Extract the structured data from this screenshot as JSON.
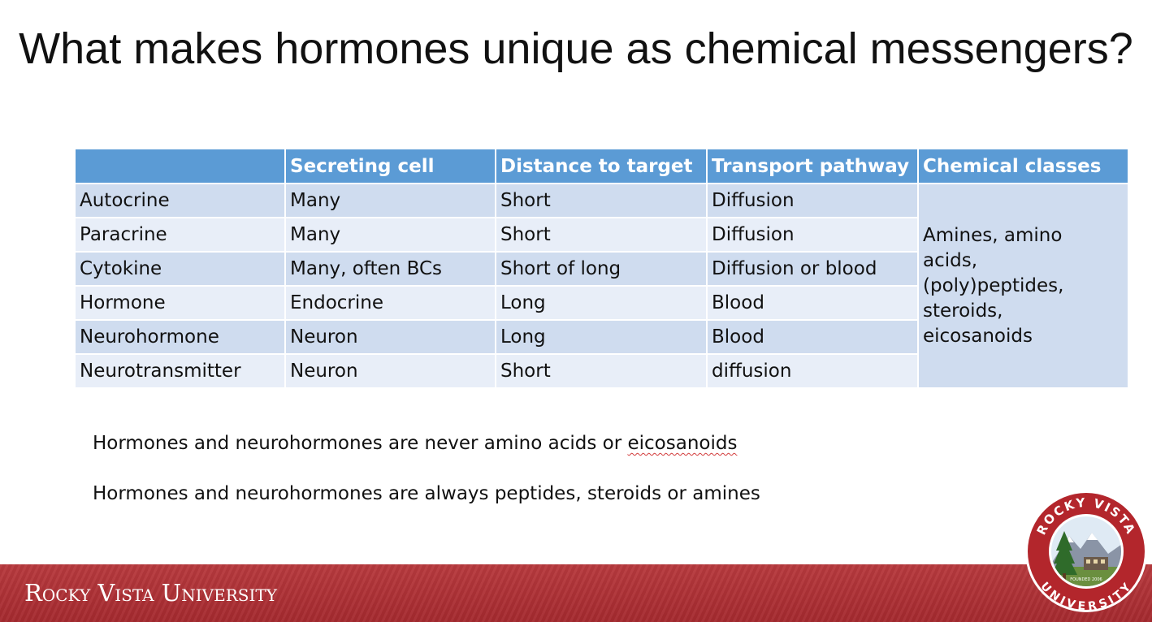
{
  "slide": {
    "title": "What makes hormones unique as chemical messengers?"
  },
  "table": {
    "headers": [
      "",
      "Secreting cell",
      "Distance to target",
      "Transport pathway",
      "Chemical classes"
    ],
    "rows": [
      {
        "type": "Autocrine",
        "secreting_cell": "Many",
        "distance": "Short",
        "pathway": "Diffusion"
      },
      {
        "type": "Paracrine",
        "secreting_cell": "Many",
        "distance": "Short",
        "pathway": "Diffusion"
      },
      {
        "type": "Cytokine",
        "secreting_cell": "Many, often BCs",
        "distance": "Short of long",
        "pathway": "Diffusion or blood"
      },
      {
        "type": "Hormone",
        "secreting_cell": "Endocrine",
        "distance": "Long",
        "pathway": "Blood"
      },
      {
        "type": "Neurohormone",
        "secreting_cell": "Neuron",
        "distance": "Long",
        "pathway": "Blood"
      },
      {
        "type": "Neurotransmitter",
        "secreting_cell": "Neuron",
        "distance": "Short",
        "pathway": "diffusion"
      }
    ],
    "chemical_classes": "Amines, amino acids, (poly)peptides, steroids, eicosanoids"
  },
  "notes": {
    "note1_prefix": "Hormones and neurohormones are never amino acids or ",
    "note1_flagged_word": "eicosanoids",
    "note2": "Hormones and neurohormones are always peptides, steroids or amines"
  },
  "footer": {
    "brand": "Rocky Vista University",
    "seal_top": "ROCKY VISTA",
    "seal_bottom": "UNIVERSITY",
    "seal_founded": "FOUNDED 2006"
  },
  "colors": {
    "header_blue": "#5b9bd5",
    "row_dark": "#cfdcef",
    "row_light": "#e8eef8",
    "footer_red": "#a52a2f"
  }
}
